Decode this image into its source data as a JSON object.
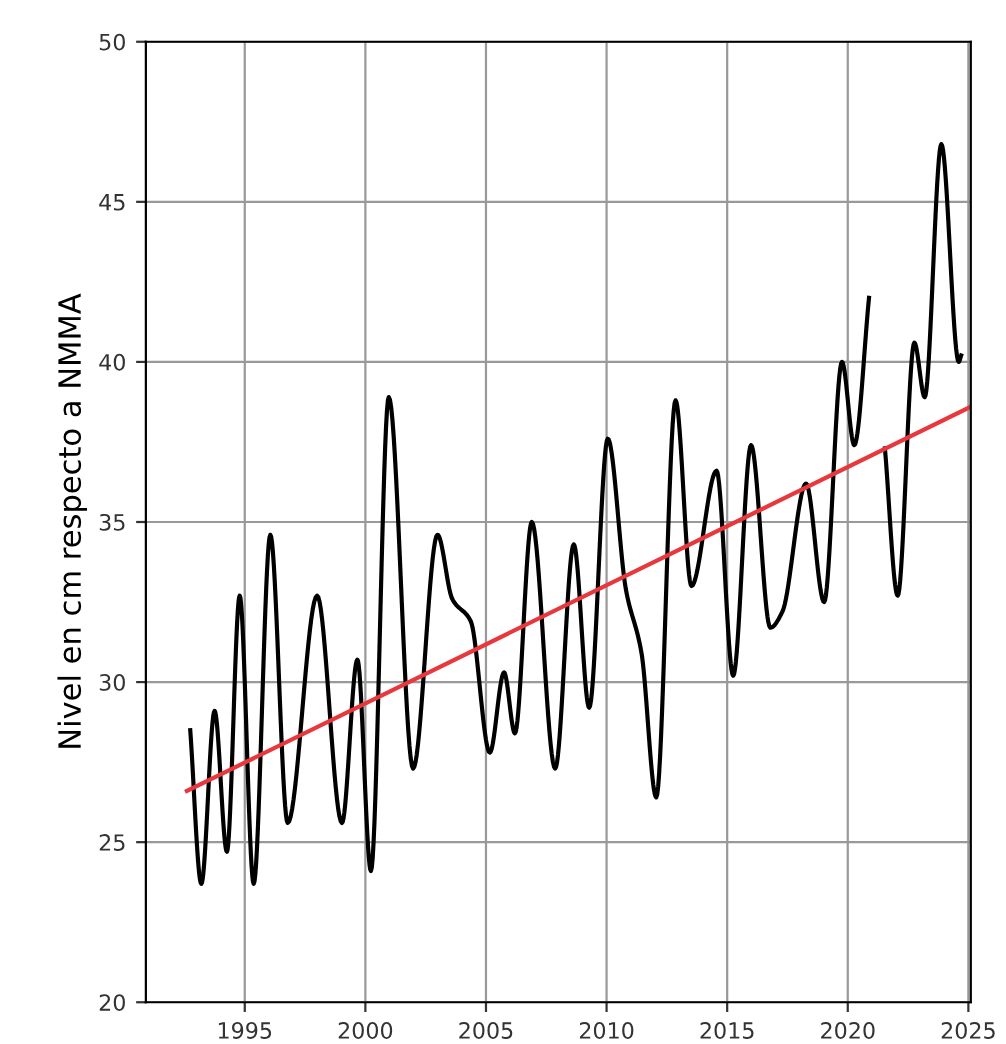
{
  "chart_data": {
    "type": "line",
    "ylabel": "Nivel en cm respecto a NMMA",
    "xlim": [
      1990.9,
      2025.1
    ],
    "ylim": [
      20,
      50
    ],
    "xticks": [
      1995,
      2000,
      2005,
      2010,
      2015,
      2020,
      2025
    ],
    "yticks": [
      20,
      25,
      30,
      35,
      40,
      45,
      50
    ],
    "grid": true,
    "legend": false,
    "series": [
      {
        "color": "#000000",
        "x": [
          1992.74,
          1993.2,
          1993.75,
          1994.26,
          1994.79,
          1995.37,
          1996.06,
          1996.78,
          1998.0,
          1999.03,
          1999.67,
          2000.23,
          2000.97,
          2001.98,
          2002.99,
          2003.6,
          2004.37,
          2005.16,
          2005.75,
          2006.2,
          2006.9,
          2007.87,
          2008.64,
          2009.28,
          2010.05,
          2010.8,
          2011.45,
          2012.06,
          2012.86,
          2013.52,
          2014.56,
          2015.25,
          2015.99,
          2016.79,
          2017.29,
          2018.27,
          2019.02,
          2019.76,
          2020.27,
          2020.88,
          2021.2,
          2021.54,
          2022.07,
          2022.76,
          2023.19,
          2023.88,
          2024.6,
          2024.7
        ],
        "values": [
          28.5,
          23.7,
          29.1,
          24.7,
          32.7,
          23.7,
          34.6,
          25.6,
          32.7,
          25.6,
          30.7,
          24.1,
          38.9,
          27.3,
          34.6,
          32.6,
          31.9,
          27.8,
          30.3,
          28.4,
          35.0,
          27.3,
          34.3,
          29.2,
          37.6,
          32.9,
          30.9,
          26.4,
          38.8,
          33.0,
          36.6,
          30.2,
          37.4,
          31.7,
          32.2,
          36.2,
          32.5,
          40.0,
          37.4,
          42.0,
          null,
          37.3,
          32.7,
          40.6,
          38.9,
          46.8,
          40.0,
          40.2
        ]
      },
      {
        "type": "line",
        "color": "#e8383d",
        "x": [
          1992.6,
          2025.1
        ],
        "values": [
          26.6,
          38.6
        ]
      }
    ]
  }
}
